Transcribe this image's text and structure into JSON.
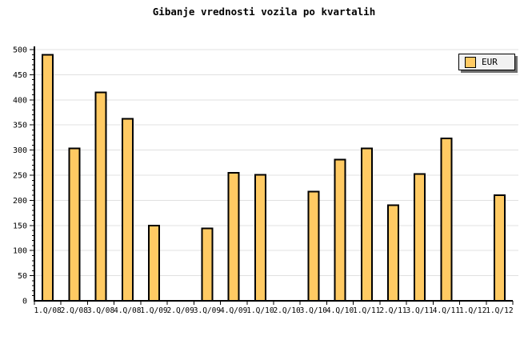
{
  "title": "Gibanje vrednosti vozila po kvartalih",
  "legend": {
    "label": "EUR"
  },
  "colors": {
    "bar_fill": "#FFCA63",
    "bar_border": "#000000",
    "grid": "#E0E0E0",
    "axis": "#000000",
    "background": "#FFFFFF",
    "legend_bg": "#F2F2F2",
    "legend_shadow": "#6E6E6E",
    "text": "#000000"
  },
  "chart_data": {
    "type": "bar",
    "title": "Gibanje vrednosti vozila po kvartalih",
    "series_name": "EUR",
    "categories": [
      "1.Q/08",
      "2.Q/08",
      "3.Q/08",
      "4.Q/08",
      "1.Q/09",
      "2.Q/09",
      "3.Q/09",
      "4.Q/09",
      "1.Q/10",
      "2.Q/10",
      "3.Q/10",
      "4.Q/10",
      "1.Q/11",
      "2.Q/11",
      "3.Q/11",
      "4.Q/11",
      "1.Q/12",
      "1.Q/12"
    ],
    "values": [
      490,
      303,
      415,
      362,
      150,
      0,
      144,
      255,
      251,
      0,
      217,
      281,
      303,
      190,
      252,
      323,
      0,
      210
    ],
    "xlabel": "",
    "ylabel": "",
    "ylim": [
      0,
      500
    ],
    "ytick_interval": 50,
    "yminor_tick_interval": 10,
    "grid": true,
    "legend_position": "top-right",
    "note_empty_categories": [
      "2.Q/09",
      "2.Q/10",
      "1.Q/12"
    ]
  }
}
